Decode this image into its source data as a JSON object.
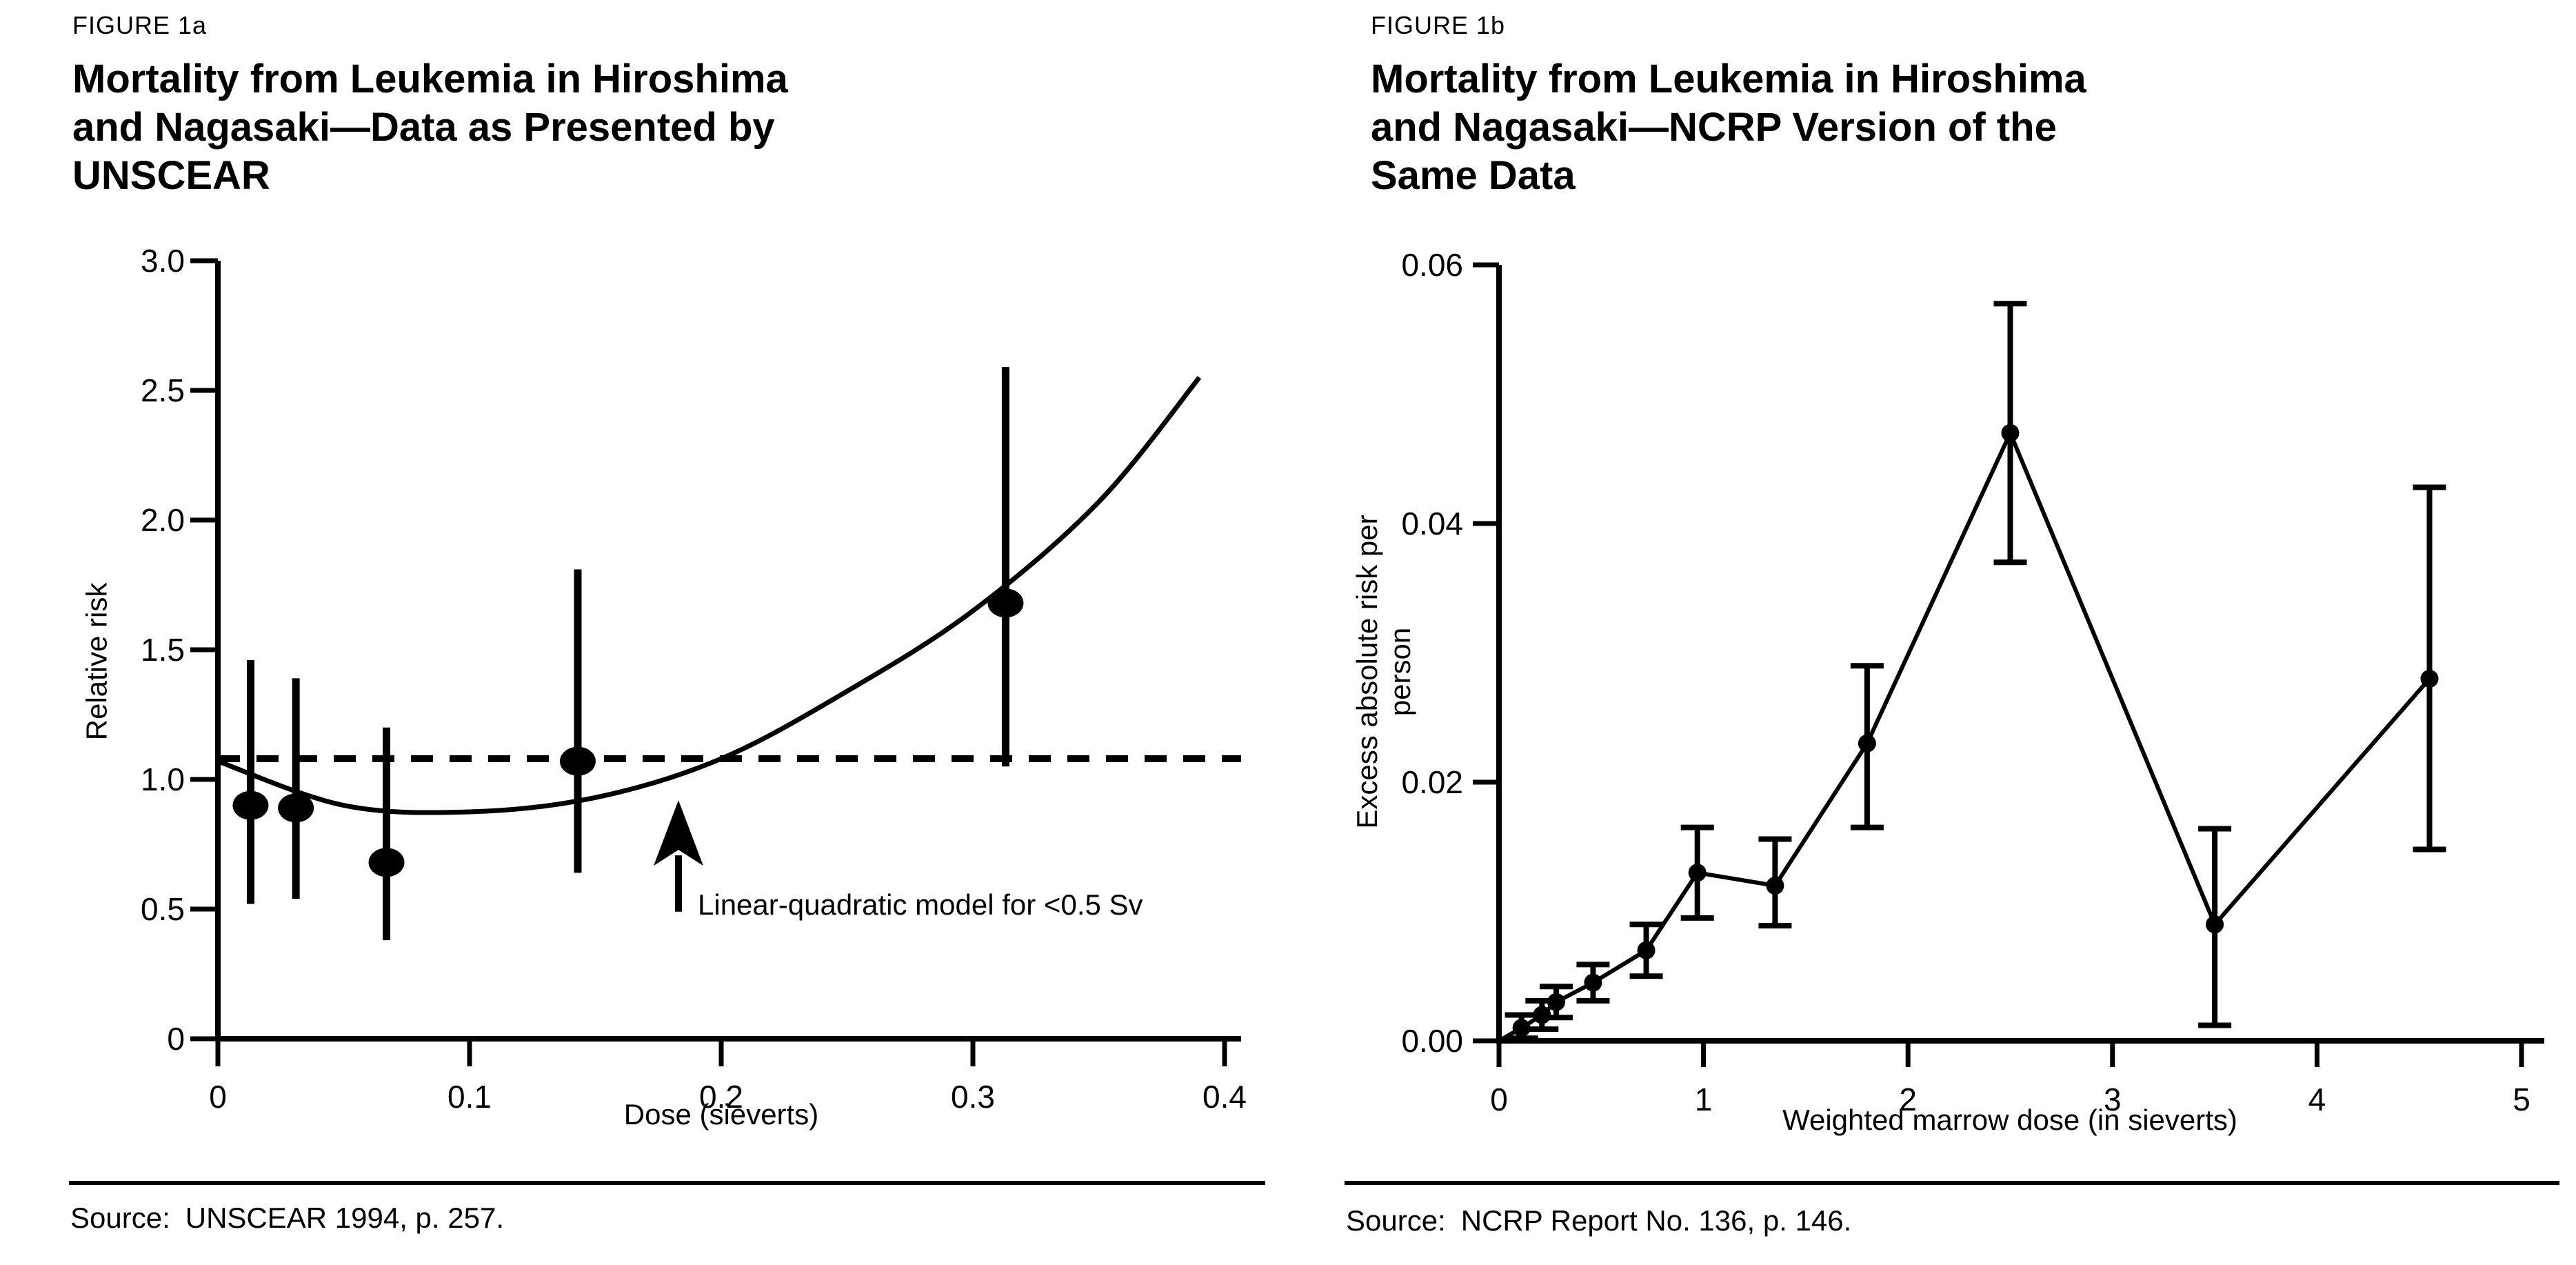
{
  "page": {
    "background": "#ffffff",
    "ink_color": "#000000"
  },
  "figures": [
    {
      "label": "FIGURE 1a",
      "title_lines": [
        "Mortality from Leukemia in Hiroshima",
        "and Nagasaki—Data as Presented by",
        "UNSCEAR"
      ],
      "source_label": "Source:",
      "source_text": "UNSCEAR 1994, p. 257."
    },
    {
      "label": "FIGURE 1b",
      "title_lines": [
        "Mortality from Leukemia in Hiroshima",
        "and Nagasaki—NCRP Version of the",
        "Same Data"
      ],
      "source_label": "Source:",
      "source_text": "NCRP Report No. 136, p. 146."
    }
  ],
  "chart_data": [
    {
      "type": "scatter",
      "title": "Mortality from Leukemia in Hiroshima and Nagasaki—Data as Presented by UNSCEAR",
      "figure_label": "FIGURE 1a",
      "xlabel": "Dose (sieverts)",
      "ylabel": "Relative risk",
      "xlim": [
        0,
        0.4
      ],
      "ylim": [
        0,
        3.0
      ],
      "grid": false,
      "legend": "none",
      "x_ticks": [
        {
          "v": 0,
          "label": "0"
        },
        {
          "v": 0.1,
          "label": "0.1"
        },
        {
          "v": 0.2,
          "label": "0.2"
        },
        {
          "v": 0.3,
          "label": "0.3"
        },
        {
          "v": 0.4,
          "label": "0.4"
        }
      ],
      "y_ticks": [
        {
          "v": 0,
          "label": "0"
        },
        {
          "v": 0.5,
          "label": "0.5"
        },
        {
          "v": 1.0,
          "label": "1.0"
        },
        {
          "v": 1.5,
          "label": "1.5"
        },
        {
          "v": 2.0,
          "label": "2.0"
        },
        {
          "v": 2.5,
          "label": "2.5"
        },
        {
          "v": 3.0,
          "label": "3.0"
        }
      ],
      "points": [
        {
          "x": 0.013,
          "y": 0.9,
          "lo": 0.52,
          "hi": 1.46
        },
        {
          "x": 0.031,
          "y": 0.89,
          "lo": 0.54,
          "hi": 1.39
        },
        {
          "x": 0.067,
          "y": 0.68,
          "lo": 0.38,
          "hi": 1.2
        },
        {
          "x": 0.143,
          "y": 1.07,
          "lo": 0.64,
          "hi": 1.81
        },
        {
          "x": 0.313,
          "y": 1.68,
          "lo": 1.05,
          "hi": 2.59
        }
      ],
      "error_bar_caps": false,
      "reference_line": {
        "y": 1.08,
        "style": "dashed"
      },
      "model_curve": {
        "points": [
          [
            0,
            1.07
          ],
          [
            0.05,
            0.9
          ],
          [
            0.1,
            0.875
          ],
          [
            0.15,
            0.93
          ],
          [
            0.2,
            1.08
          ],
          [
            0.25,
            1.34
          ],
          [
            0.3,
            1.65
          ],
          [
            0.35,
            2.07
          ],
          [
            0.39,
            2.55
          ]
        ]
      },
      "annotation": {
        "text": "Linear-quadratic model for <0.5 Sv",
        "arrow_x": 0.183,
        "arrow_tip_y": 0.92,
        "arrow_tail_y": 0.49
      }
    },
    {
      "type": "line",
      "title": "Mortality from Leukemia in Hiroshima and Nagasaki—NCRP Version of the Same Data",
      "figure_label": "FIGURE 1b",
      "xlabel": "Weighted marrow dose (in sieverts)",
      "ylabel": "Excess absolute risk per person",
      "xlim": [
        0,
        5
      ],
      "ylim": [
        0,
        0.06
      ],
      "grid": false,
      "legend": "none",
      "line_starts_at_origin": true,
      "x_ticks": [
        {
          "v": 0,
          "label": "0"
        },
        {
          "v": 1,
          "label": "1"
        },
        {
          "v": 2,
          "label": "2"
        },
        {
          "v": 3,
          "label": "3"
        },
        {
          "v": 4,
          "label": "4"
        },
        {
          "v": 5,
          "label": "5"
        }
      ],
      "y_ticks": [
        {
          "v": 0.0,
          "label": "0.00"
        },
        {
          "v": 0.02,
          "label": "0.02"
        },
        {
          "v": 0.04,
          "label": "0.04"
        },
        {
          "v": 0.06,
          "label": "0.06"
        }
      ],
      "points": [
        {
          "x": 0.11,
          "y": 0.001,
          "lo": 0.0002,
          "hi": 0.002
        },
        {
          "x": 0.21,
          "y": 0.002,
          "lo": 0.0009,
          "hi": 0.0031
        },
        {
          "x": 0.28,
          "y": 0.003,
          "lo": 0.0018,
          "hi": 0.0042
        },
        {
          "x": 0.46,
          "y": 0.0045,
          "lo": 0.0031,
          "hi": 0.0059
        },
        {
          "x": 0.72,
          "y": 0.007,
          "lo": 0.005,
          "hi": 0.009
        },
        {
          "x": 0.97,
          "y": 0.013,
          "lo": 0.0095,
          "hi": 0.0165
        },
        {
          "x": 1.35,
          "y": 0.012,
          "lo": 0.0089,
          "hi": 0.0156
        },
        {
          "x": 1.8,
          "y": 0.023,
          "lo": 0.0165,
          "hi": 0.029
        },
        {
          "x": 2.5,
          "y": 0.047,
          "lo": 0.037,
          "hi": 0.057
        },
        {
          "x": 3.5,
          "y": 0.009,
          "lo": 0.0012,
          "hi": 0.0164
        },
        {
          "x": 4.55,
          "y": 0.028,
          "lo": 0.0148,
          "hi": 0.0428
        }
      ],
      "error_bar_caps": true
    }
  ]
}
